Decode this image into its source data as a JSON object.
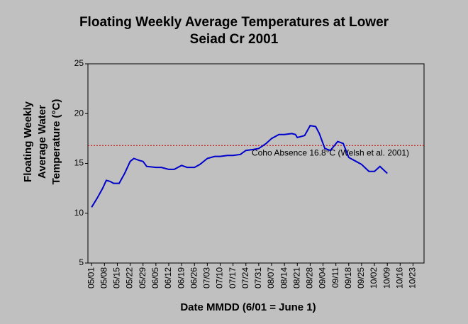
{
  "chart_data": {
    "type": "line",
    "title": [
      "Floating Weekly Average Temperatures at Lower",
      "Seiad Cr 2001"
    ],
    "y_label": [
      "Floating Weekly",
      "Average Water",
      "Temperature (°C)"
    ],
    "x_label": "Date MMDD (6/01 = June 1)",
    "xlim": [
      "04/29",
      "10/29"
    ],
    "xticks": [
      "05/01",
      "05/08",
      "05/15",
      "05/22",
      "05/29",
      "06/05",
      "06/12",
      "06/19",
      "06/26",
      "07/03",
      "07/10",
      "07/17",
      "07/24",
      "07/31",
      "08/07",
      "08/14",
      "08/21",
      "08/28",
      "09/04",
      "09/11",
      "09/18",
      "09/25",
      "10/02",
      "10/09",
      "10/16",
      "10/23"
    ],
    "ylim": [
      5,
      25
    ],
    "yticks": [
      5,
      10,
      15,
      20,
      25
    ],
    "series": [
      {
        "name": "Floating Weekly Average Temperature",
        "color": "#0000cc",
        "x": [
          "05/01",
          "05/04",
          "05/07",
          "05/09",
          "05/11",
          "05/13",
          "05/16",
          "05/19",
          "05/22",
          "05/24",
          "05/27",
          "05/29",
          "05/31",
          "06/05",
          "06/08",
          "06/12",
          "06/15",
          "06/19",
          "06/22",
          "06/26",
          "06/29",
          "07/03",
          "07/07",
          "07/10",
          "07/14",
          "07/17",
          "07/21",
          "07/24",
          "07/28",
          "07/31",
          "08/04",
          "08/07",
          "08/11",
          "08/14",
          "08/18",
          "08/20",
          "08/21",
          "08/25",
          "08/28",
          "08/31",
          "09/02",
          "09/05",
          "09/08",
          "09/12",
          "09/15",
          "09/18",
          "09/22",
          "09/25",
          "09/29",
          "10/02",
          "10/05",
          "10/09"
        ],
        "values": [
          10.6,
          11.5,
          12.5,
          13.3,
          13.2,
          13.0,
          13.0,
          14.0,
          15.2,
          15.5,
          15.3,
          15.2,
          14.7,
          14.6,
          14.6,
          14.4,
          14.4,
          14.8,
          14.6,
          14.6,
          14.9,
          15.5,
          15.7,
          15.7,
          15.8,
          15.8,
          15.9,
          16.3,
          16.4,
          16.5,
          17.0,
          17.5,
          17.9,
          17.9,
          18.0,
          17.9,
          17.6,
          17.8,
          18.8,
          18.7,
          18.0,
          16.5,
          16.3,
          17.2,
          17.0,
          15.6,
          15.2,
          14.9,
          14.2,
          14.2,
          14.7,
          14.0
        ]
      }
    ],
    "threshold": {
      "value": 16.8,
      "label": "Coho Absence 16.8°C (Welsh et al. 2001)",
      "color": "#cc0000"
    }
  }
}
